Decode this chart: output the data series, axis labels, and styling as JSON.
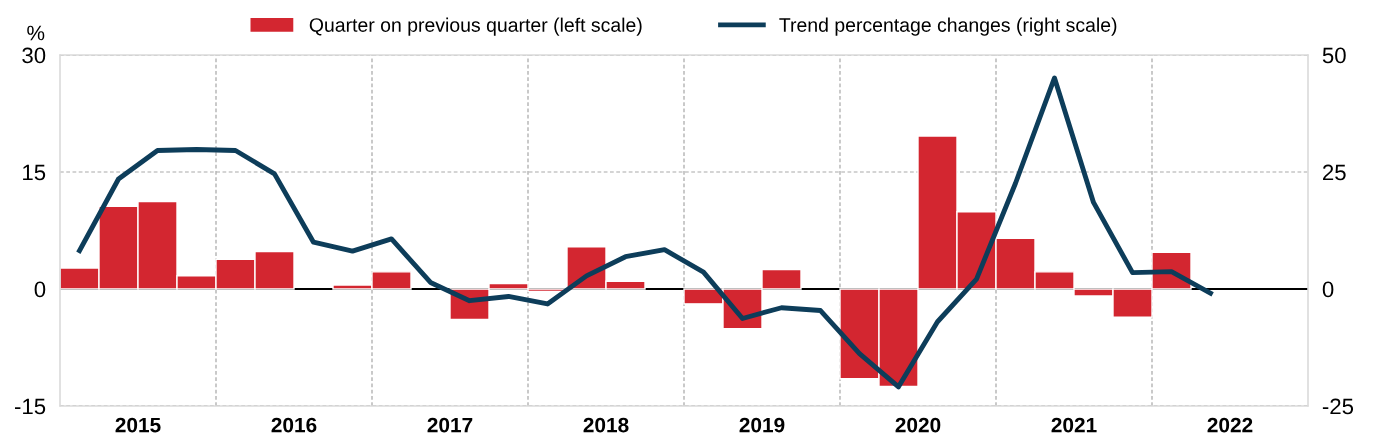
{
  "chart_data": {
    "type": "bar",
    "ylabel": "%",
    "xlim": [
      2015,
      2023
    ],
    "xticks": [
      {
        "value": 2015.5,
        "label": "2015"
      },
      {
        "value": 2016,
        "label": null
      },
      {
        "value": 2016.5,
        "label": "2016"
      },
      {
        "value": 2017,
        "label": null
      },
      {
        "value": 2017.5,
        "label": "2017"
      },
      {
        "value": 2018,
        "label": null
      },
      {
        "value": 2018.5,
        "label": "2018"
      },
      {
        "value": 2019,
        "label": null
      },
      {
        "value": 2019.5,
        "label": "2019"
      },
      {
        "value": 2020,
        "label": null
      },
      {
        "value": 2020.5,
        "label": "2020"
      },
      {
        "value": 2021,
        "label": null
      },
      {
        "value": 2021.5,
        "label": "2021"
      },
      {
        "value": 2022,
        "label": null
      },
      {
        "value": 2022.5,
        "label": "2022"
      }
    ],
    "ylim": [
      -15,
      30
    ],
    "yticks": [
      -15,
      0,
      15,
      30
    ],
    "y2lim": [
      -25,
      50
    ],
    "y2ticks": [
      -25,
      0,
      25,
      50
    ],
    "grid": true,
    "legend": "top",
    "ref_lines": [
      {
        "axis": "y",
        "value": 0,
        "color": "#000000"
      }
    ],
    "series": [
      {
        "name": "Quarter on previous quarter (left scale)",
        "color": "#d32630",
        "x": [
          2015.125,
          2015.375,
          2015.625,
          2015.875,
          2016.125,
          2016.375,
          2016.625,
          2016.875,
          2017.125,
          2017.375,
          2017.625,
          2017.875,
          2018.125,
          2018.375,
          2018.625,
          2018.875,
          2019.125,
          2019.375,
          2019.625,
          2019.875,
          2020.125,
          2020.375,
          2020.625,
          2020.875,
          2021.125,
          2021.375,
          2021.625,
          2021.875,
          2022.125
        ],
        "values": [
          2.7,
          10.6,
          11.2,
          1.7,
          3.8,
          4.8,
          null,
          0.5,
          2.2,
          null,
          -3.9,
          0.7,
          -0.3,
          5.4,
          1.0,
          null,
          -1.9,
          -5.1,
          2.5,
          null,
          -11.5,
          -12.5,
          19.6,
          9.9,
          6.5,
          2.2,
          -0.9,
          -3.6,
          4.7
        ]
      },
      {
        "name": "Trend percentage changes (right scale)",
        "type": "line",
        "axis": "y2",
        "color": "#0d3d5a",
        "x": [
          2015.125,
          2015.375,
          2015.625,
          2015.875,
          2016.125,
          2016.375,
          2016.625,
          2016.875,
          2017.125,
          2017.375,
          2017.625,
          2017.875,
          2018.125,
          2018.375,
          2018.625,
          2018.875,
          2019.125,
          2019.375,
          2019.625,
          2019.875,
          2020.125,
          2020.375,
          2020.625,
          2020.875,
          2021.125,
          2021.375,
          2021.625,
          2021.875,
          2022.125,
          2022.375
        ],
        "values": [
          8.2,
          23.5,
          29.6,
          29.8,
          29.6,
          24.6,
          10.0,
          8.1,
          10.7,
          1.4,
          -2.5,
          -1.6,
          -3.2,
          2.8,
          6.9,
          8.4,
          3.6,
          -6.3,
          -4.0,
          -4.6,
          -13.8,
          -20.9,
          -7.0,
          2.1,
          22.6,
          45.1,
          18.5,
          3.5,
          3.7,
          -0.9
        ]
      }
    ]
  }
}
